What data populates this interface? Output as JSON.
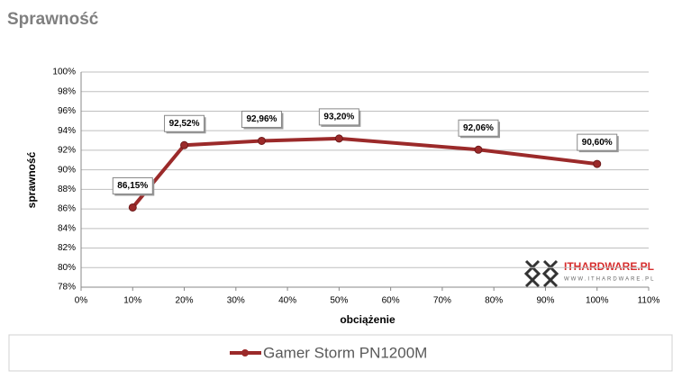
{
  "chart_data": {
    "type": "line",
    "title": "Sprawność",
    "x_label": "obciążenie",
    "y_label": "sprawność",
    "series": [
      {
        "name": "Gamer Storm PN1200M",
        "color": "#9b2a2a",
        "x": [
          10,
          20,
          35,
          50,
          77,
          100
        ],
        "values": [
          86.15,
          92.52,
          92.96,
          93.2,
          92.06,
          90.6
        ],
        "value_labels": [
          "86,15%",
          "92,52%",
          "92,96%",
          "93,20%",
          "92,06%",
          "90,60%"
        ]
      }
    ],
    "xlim": [
      0,
      110
    ],
    "xticks": [
      {
        "value": 0,
        "label": "0%"
      },
      {
        "value": 10,
        "label": "10%"
      },
      {
        "value": 20,
        "label": "20%"
      },
      {
        "value": 30,
        "label": "30%"
      },
      {
        "value": 40,
        "label": "40%"
      },
      {
        "value": 50,
        "label": "50%"
      },
      {
        "value": 60,
        "label": "60%"
      },
      {
        "value": 70,
        "label": "70%"
      },
      {
        "value": 80,
        "label": "80%"
      },
      {
        "value": 90,
        "label": "90%"
      },
      {
        "value": 100,
        "label": "100%"
      },
      {
        "value": 110,
        "label": "110%"
      }
    ],
    "ylim": [
      78,
      100
    ],
    "yticks": [
      {
        "value": 78,
        "label": "78%"
      },
      {
        "value": 80,
        "label": "80%"
      },
      {
        "value": 82,
        "label": "82%"
      },
      {
        "value": 84,
        "label": "84%"
      },
      {
        "value": 86,
        "label": "86%"
      },
      {
        "value": 88,
        "label": "88%"
      },
      {
        "value": 90,
        "label": "90%"
      },
      {
        "value": 92,
        "label": "92%"
      },
      {
        "value": 94,
        "label": "94%"
      },
      {
        "value": 96,
        "label": "96%"
      },
      {
        "value": 98,
        "label": "98%"
      },
      {
        "value": 100,
        "label": "100%"
      }
    ],
    "grid": true,
    "watermark": "ITHARDWARE.PL",
    "watermark_url": "WWW.ITHARDWARE.PL"
  }
}
